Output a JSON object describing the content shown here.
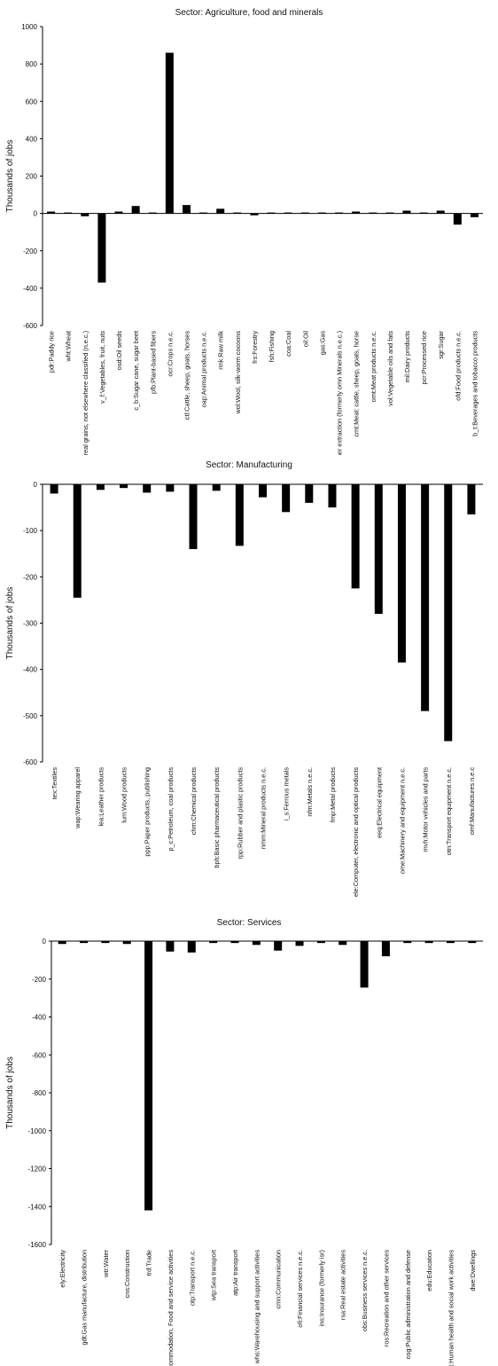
{
  "chart_data": [
    {
      "type": "bar",
      "title": "Sector: Agriculture, food and minerals",
      "ylabel": "Thousands of jobs",
      "xlabel": "",
      "ylim": [
        -600,
        1000
      ],
      "yticks": [
        1000,
        800,
        600,
        400,
        200,
        0,
        -200,
        -400,
        -600
      ],
      "grid": false,
      "categories": [
        "pdr:Paddy rice",
        "wht:Wheat",
        "gro:Cereal grains, not elsewhere classified (n.e.c.)",
        "v_f:Vegetables, fruit, nuts",
        "osd:Oil seeds",
        "c_b:Sugar cane, sugar beet",
        "pfb:Plant-based fibers",
        "ocr:Crops n.e.c.",
        "ctl:Cattle, sheep, goats, horses",
        "oap:Animal products n.e.c.",
        "rmk:Raw milk",
        "wol:Wool, silk-worm cocoons",
        "frs:Forestry",
        "fsh:Fishing",
        "coa:Coal",
        "oil:Oil",
        "gas:Gas",
        "oxt:Other extraction (formerly omn Minerals n.e.c.)",
        "cmt:Meat: cattle, sheep, goats, horse",
        "omt:Meat products n.e.c.",
        "vol:Vegetable oils and fats",
        "mil:Dairy products",
        "pcr:Processed rice",
        "sgr:Sugar",
        "ofd:Food products n.e.c.",
        "b_t:Beverages and tobacco products"
      ],
      "values": [
        10,
        5,
        -15,
        -370,
        10,
        40,
        5,
        860,
        45,
        5,
        25,
        5,
        -10,
        5,
        5,
        5,
        5,
        5,
        10,
        5,
        5,
        15,
        5,
        15,
        -60,
        -20
      ]
    },
    {
      "type": "bar",
      "title": "Sector: Manufacturing",
      "ylabel": "Thousands of jobs",
      "xlabel": "",
      "ylim": [
        -600,
        0
      ],
      "yticks": [
        0,
        -100,
        -200,
        -300,
        -400,
        -500,
        -600
      ],
      "grid": false,
      "categories": [
        "tex:Textiles",
        "wap:Wearing apparel",
        "lea:Leather products",
        "lum:Wood products",
        "ppp:Paper products, publishing",
        "p_c:Petroleum, coal products",
        "chm:Chemical products",
        "bph:Basic pharmaceutical products",
        "rpp:Rubber and plastic products",
        "nmm:Mineral products n.e.c.",
        "i_s:Ferrous metals",
        "nfm:Metals n.e.c.",
        "fmp:Metal products",
        "ele:Computer, electronic and optical products",
        "eeq:Electrical equipment",
        "ome:Machinery and equipment n.e.c.",
        "mvh:Motor vehicles and parts",
        "otn:Transport equipment n.e.c.",
        "omf:Manufactures n.e.c"
      ],
      "values": [
        -20,
        -245,
        -12,
        -8,
        -18,
        -16,
        -140,
        -14,
        -133,
        -28,
        -60,
        -40,
        -50,
        -225,
        -280,
        -385,
        -490,
        -555,
        -65
      ]
    },
    {
      "type": "bar",
      "title": "Sector: Services",
      "ylabel": "Thousands of jobs",
      "xlabel": "",
      "ylim": [
        -1600,
        0
      ],
      "yticks": [
        0,
        -200,
        -400,
        -600,
        -800,
        -1000,
        -1200,
        -1400,
        -1600
      ],
      "grid": false,
      "categories": [
        "ely:Electricity",
        "gdt:Gas manufacture, distribution",
        "wtr:Water",
        "cns:Construction",
        "trd:Trade",
        "afs:Accommodation, Food and service activities",
        "otp:Transport n.e.c.",
        "wtp:Sea transport",
        "atp:Air transport",
        "whs:Warehousing and support activities",
        "cmn:Communication",
        "ofi:Financial services n.e.c.",
        "ins:Insurance (formerly isr)",
        "rsa:Real estate activities",
        "obs:Business services n.e.c.",
        "ros:Recreation and other services",
        "osg:Public administration and defense",
        "edu:Education",
        "hht:Human health and social work activities",
        "dwe:Dwellings"
      ],
      "values": [
        -15,
        -10,
        -10,
        -15,
        -1420,
        -55,
        -60,
        -10,
        -10,
        -20,
        -50,
        -25,
        -10,
        -20,
        -245,
        -80,
        -10,
        -10,
        -10,
        -10
      ]
    }
  ]
}
